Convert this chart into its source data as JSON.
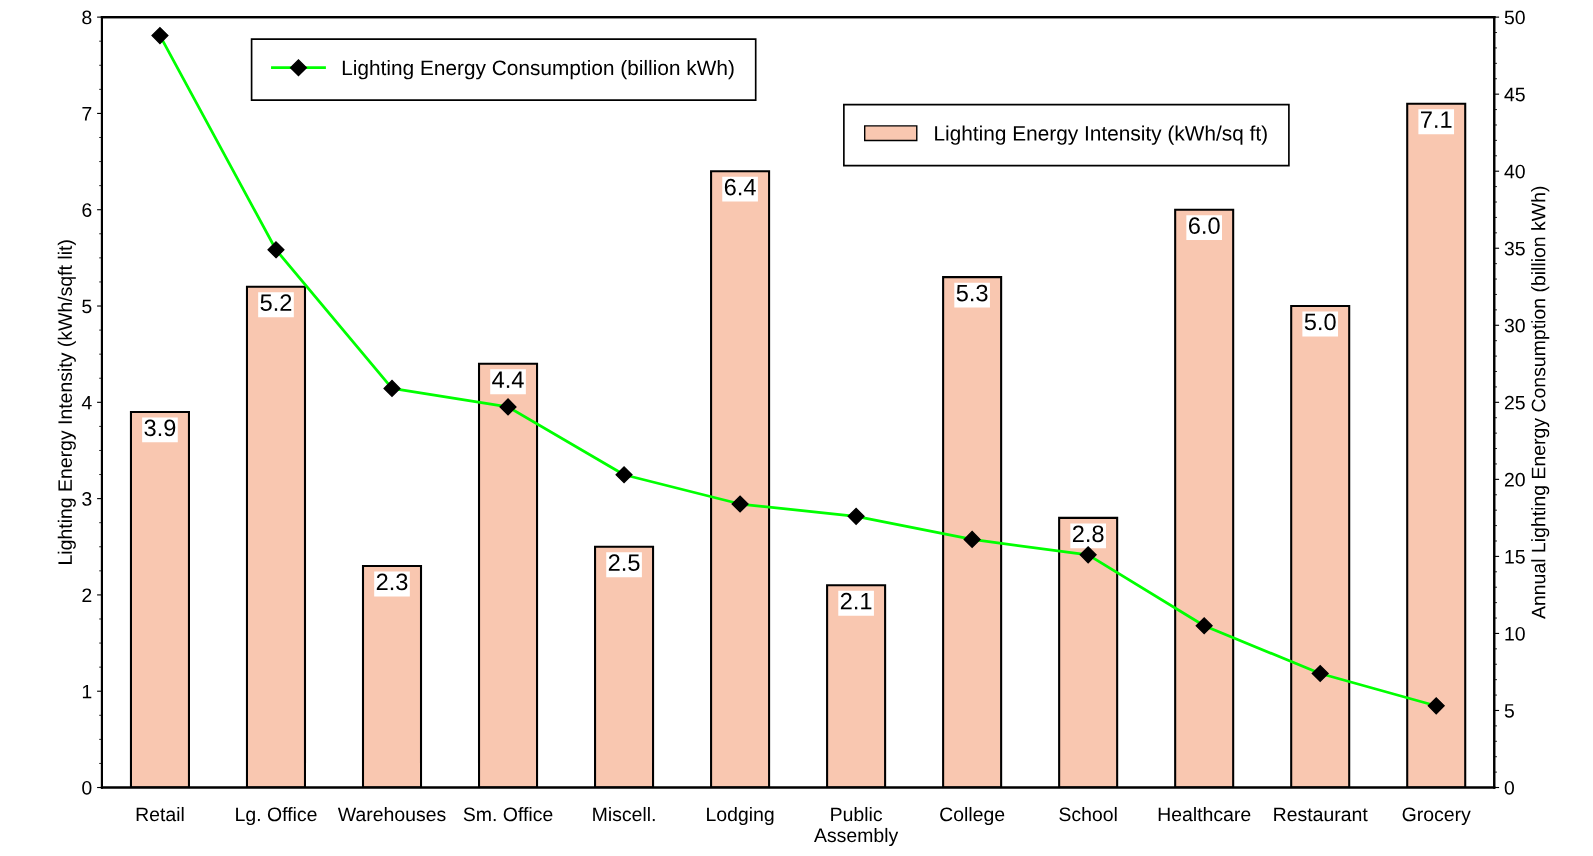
{
  "chart_data": {
    "type": "bar",
    "ylabel": "Lighting Energy Intensity (kWh/sqft lit)",
    "y2label": "Annual Lighting Energy Consumption (billion kWh)",
    "categories": [
      "Retail",
      "Lg. Office",
      "Warehouses",
      "Sm. Office",
      "Miscell.",
      "Lodging",
      "Public\nAssembly",
      "College",
      "School",
      "Healthcare",
      "Restaurant",
      "Grocery"
    ],
    "series": [
      {
        "name": "Lighting Energy Intensity (kWh/sq ft)",
        "color": "#f9c7b0",
        "values": [
          3.9,
          5.2,
          2.3,
          4.4,
          2.5,
          6.4,
          2.1,
          5.3,
          2.8,
          6.0,
          5.0,
          7.1
        ],
        "value_labels": [
          "3.9",
          "5.2",
          "2.3",
          "4.4",
          "2.5",
          "6.4",
          "2.1",
          "5.3",
          "2.8",
          "6.0",
          "5.0",
          "7.1"
        ]
      },
      {
        "name": "Lighting Energy Consumption (billion kWh)",
        "type": "line",
        "axis": "y2",
        "color": "#00ff00",
        "marker": "diamond",
        "values": [
          48.8,
          34.9,
          25.9,
          24.7,
          20.3,
          18.4,
          17.6,
          16.1,
          15.1,
          10.5,
          7.4,
          5.3
        ]
      }
    ],
    "ylim": [
      0,
      8
    ],
    "yticks": [
      0,
      1,
      2,
      3,
      4,
      5,
      6,
      7,
      8
    ],
    "y2lim": [
      0,
      50
    ],
    "y2ticks": [
      0,
      5,
      10,
      15,
      20,
      25,
      30,
      35,
      40,
      45,
      50
    ],
    "grid": false,
    "legend": "top"
  }
}
